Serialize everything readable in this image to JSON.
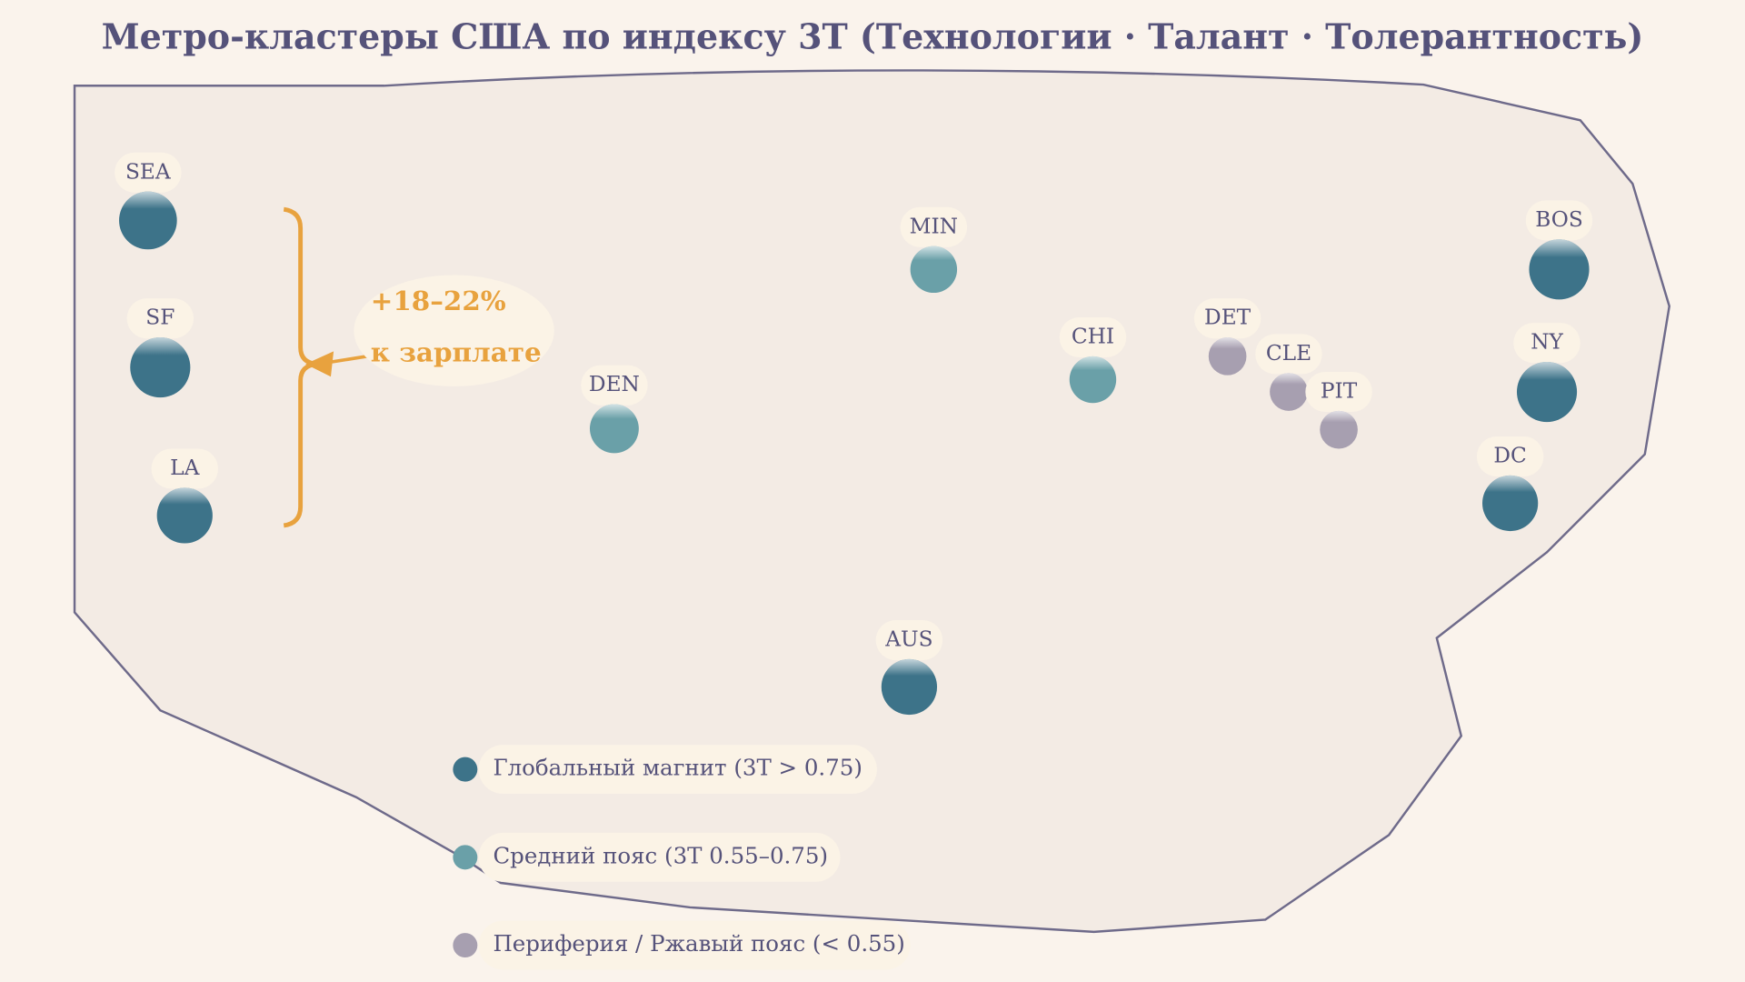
{
  "title": "Метро-кластеры США по индексу 3Т (Технологии · Талант · Толерантность)",
  "annotation": {
    "lines": [
      "+18–22%",
      "к зарплате"
    ],
    "color": "#e8a23e"
  },
  "groups": [
    {
      "label": "Глобальный магнит (3Т > 0.75)",
      "color": "#3d7389",
      "nodes": [
        "SEA",
        "SF",
        "LA",
        "AUS",
        "BOS",
        "NY",
        "DC"
      ]
    },
    {
      "label": "Средний пояс (3Т 0.55–0.75)",
      "color": "#6aa0a8",
      "nodes": [
        "MIN",
        "DEN",
        "CHI"
      ]
    },
    {
      "label": "Периферия / Ржавый пояс (< 0.55)",
      "color": "#a79fb0",
      "nodes": [
        "DET",
        "CLE",
        "PIT"
      ]
    }
  ]
}
